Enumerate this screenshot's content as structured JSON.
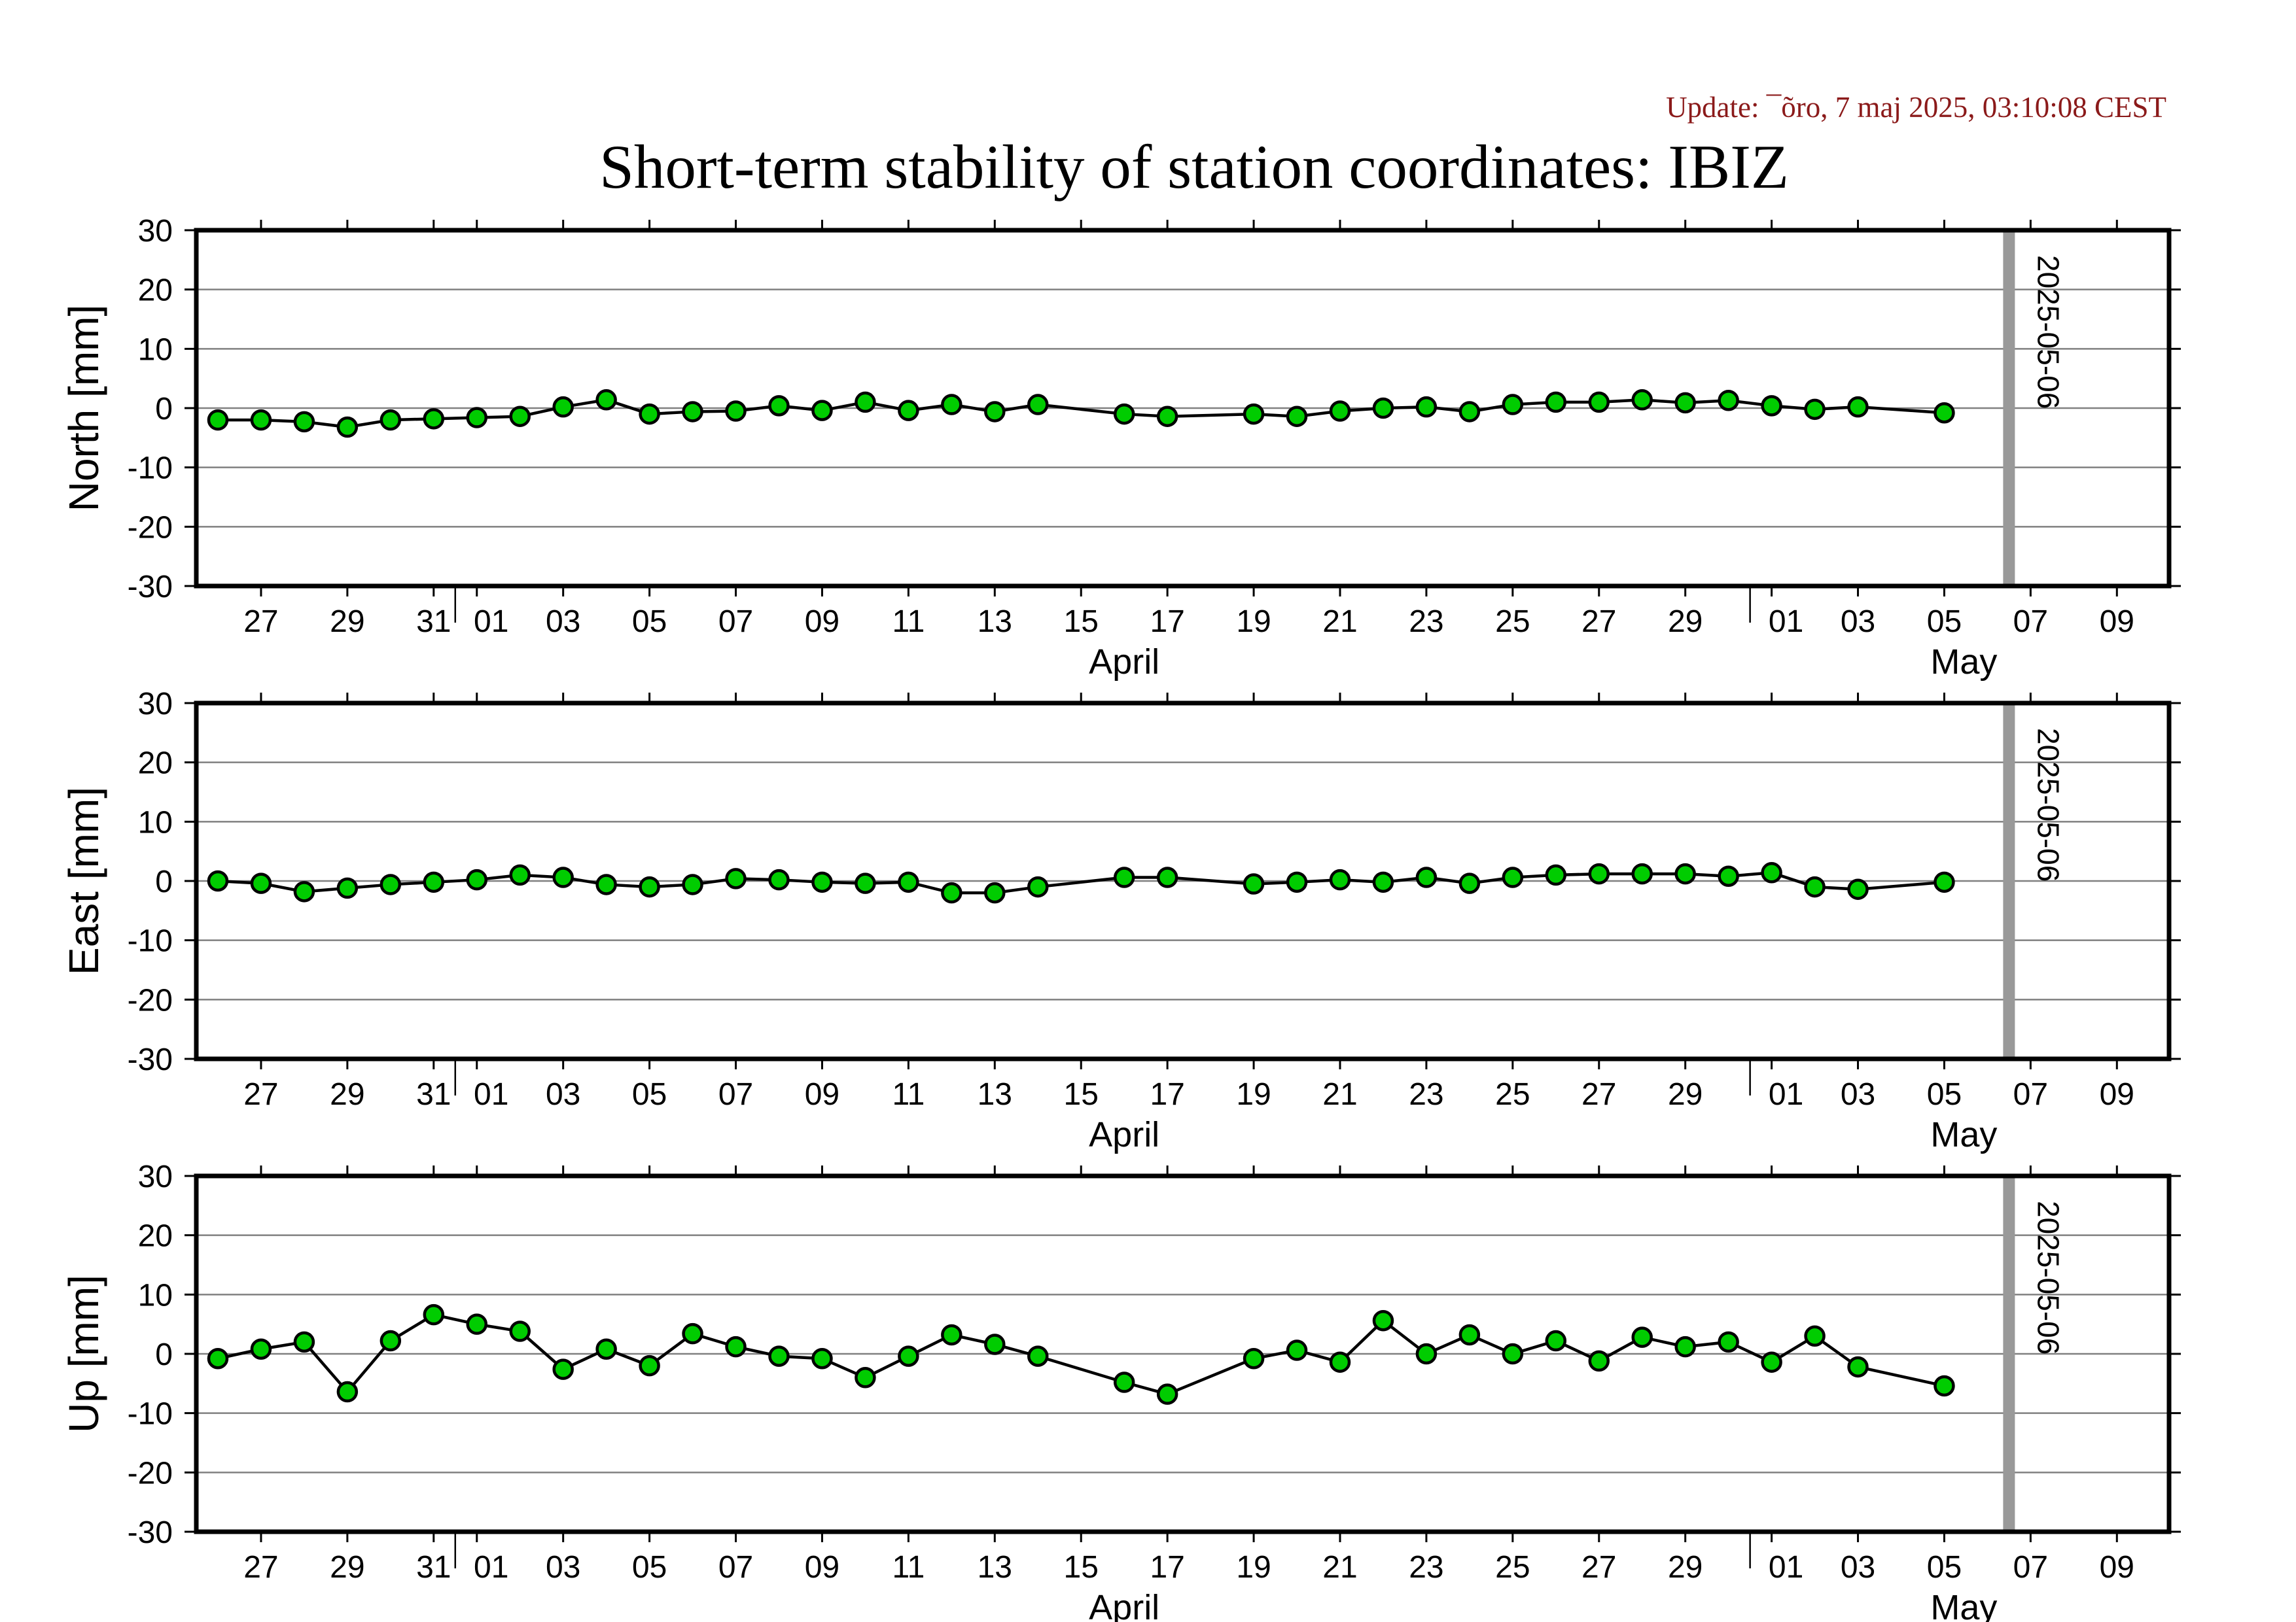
{
  "update": "Update: ¯õro, 7 maj 2025, 03:10:08 CEST",
  "title": "Short-term stability of station coordinates: IBIZ",
  "marker_label": "2025-05-06",
  "colors": {
    "point_fill": "#00cc00",
    "marker": "#999999",
    "grid": "#808080",
    "update_text": "#8b1a1a"
  },
  "chart_data": [
    {
      "type": "line",
      "ylabel": "North [mm]",
      "ylim": [
        -30,
        30
      ],
      "yticks": [
        30,
        20,
        10,
        0,
        -10,
        -20,
        -30
      ],
      "x_range": [
        "2025-03-25T12:00",
        "2025-05-10T05:00"
      ],
      "x_tick_labels": [
        "27",
        "29",
        "31",
        "01",
        "03",
        "05",
        "07",
        "09",
        "11",
        "13",
        "15",
        "17",
        "19",
        "21",
        "23",
        "25",
        "27",
        "29",
        "01",
        "03",
        "05",
        "07",
        "09"
      ],
      "month_labels": [
        "April",
        "May"
      ],
      "marker_date": "2025-05-06",
      "grid": true,
      "series": [
        {
          "x": [
            "2025-03-26",
            "2025-03-27",
            "2025-03-28",
            "2025-03-29",
            "2025-03-30",
            "2025-03-31",
            "2025-04-01",
            "2025-04-02",
            "2025-04-03",
            "2025-04-04",
            "2025-04-05",
            "2025-04-06",
            "2025-04-07",
            "2025-04-08",
            "2025-04-09",
            "2025-04-10",
            "2025-04-11",
            "2025-04-12",
            "2025-04-13",
            "2025-04-14",
            "2025-04-16",
            "2025-04-17",
            "2025-04-19",
            "2025-04-20",
            "2025-04-21",
            "2025-04-22",
            "2025-04-23",
            "2025-04-24",
            "2025-04-25",
            "2025-04-26",
            "2025-04-27",
            "2025-04-28",
            "2025-04-29",
            "2025-04-30",
            "2025-05-01",
            "2025-05-02",
            "2025-05-03",
            "2025-05-05"
          ],
          "y": [
            -2.0,
            -2.0,
            -2.3,
            -3.2,
            -2.0,
            -1.8,
            -1.6,
            -1.4,
            0.2,
            1.4,
            -1.0,
            -0.6,
            -0.5,
            0.4,
            -0.4,
            1.0,
            -0.4,
            0.6,
            -0.6,
            0.6,
            -1.0,
            -1.4,
            -1.0,
            -1.4,
            -0.5,
            0.0,
            0.2,
            -0.6,
            0.6,
            1.0,
            1.0,
            1.4,
            0.9,
            1.3,
            0.4,
            -0.2,
            0.2,
            -0.8
          ]
        }
      ]
    },
    {
      "type": "line",
      "ylabel": "East [mm]",
      "ylim": [
        -30,
        30
      ],
      "yticks": [
        30,
        20,
        10,
        0,
        -10,
        -20,
        -30
      ],
      "x_range": [
        "2025-03-25T12:00",
        "2025-05-10T05:00"
      ],
      "x_tick_labels": [
        "27",
        "29",
        "31",
        "01",
        "03",
        "05",
        "07",
        "09",
        "11",
        "13",
        "15",
        "17",
        "19",
        "21",
        "23",
        "25",
        "27",
        "29",
        "01",
        "03",
        "05",
        "07",
        "09"
      ],
      "month_labels": [
        "April",
        "May"
      ],
      "marker_date": "2025-05-06",
      "grid": true,
      "series": [
        {
          "x": [
            "2025-03-26",
            "2025-03-27",
            "2025-03-28",
            "2025-03-29",
            "2025-03-30",
            "2025-03-31",
            "2025-04-01",
            "2025-04-02",
            "2025-04-03",
            "2025-04-04",
            "2025-04-05",
            "2025-04-06",
            "2025-04-07",
            "2025-04-08",
            "2025-04-09",
            "2025-04-10",
            "2025-04-11",
            "2025-04-12",
            "2025-04-13",
            "2025-04-14",
            "2025-04-16",
            "2025-04-17",
            "2025-04-19",
            "2025-04-20",
            "2025-04-21",
            "2025-04-22",
            "2025-04-23",
            "2025-04-24",
            "2025-04-25",
            "2025-04-26",
            "2025-04-27",
            "2025-04-28",
            "2025-04-29",
            "2025-04-30",
            "2025-05-01",
            "2025-05-02",
            "2025-05-03",
            "2025-05-05"
          ],
          "y": [
            0.0,
            -0.4,
            -1.8,
            -1.2,
            -0.6,
            -0.2,
            0.2,
            1.0,
            0.6,
            -0.6,
            -1.0,
            -0.6,
            0.4,
            0.2,
            -0.2,
            -0.4,
            -0.2,
            -2.0,
            -2.0,
            -1.0,
            0.6,
            0.6,
            -0.5,
            -0.2,
            0.2,
            -0.2,
            0.6,
            -0.4,
            0.6,
            1.0,
            1.2,
            1.2,
            1.2,
            0.8,
            1.4,
            -1.0,
            -1.4,
            -0.2
          ]
        }
      ]
    },
    {
      "type": "line",
      "ylabel": "Up [mm]",
      "ylim": [
        -30,
        30
      ],
      "yticks": [
        30,
        20,
        10,
        0,
        -10,
        -20,
        -30
      ],
      "x_range": [
        "2025-03-25T12:00",
        "2025-05-10T05:00"
      ],
      "x_tick_labels": [
        "27",
        "29",
        "31",
        "01",
        "03",
        "05",
        "07",
        "09",
        "11",
        "13",
        "15",
        "17",
        "19",
        "21",
        "23",
        "25",
        "27",
        "29",
        "01",
        "03",
        "05",
        "07",
        "09"
      ],
      "month_labels": [
        "April",
        "May"
      ],
      "marker_date": "2025-05-06",
      "grid": true,
      "series": [
        {
          "x": [
            "2025-03-26",
            "2025-03-27",
            "2025-03-28",
            "2025-03-29",
            "2025-03-30",
            "2025-03-31",
            "2025-04-01",
            "2025-04-02",
            "2025-04-03",
            "2025-04-04",
            "2025-04-05",
            "2025-04-06",
            "2025-04-07",
            "2025-04-08",
            "2025-04-09",
            "2025-04-10",
            "2025-04-11",
            "2025-04-12",
            "2025-04-13",
            "2025-04-14",
            "2025-04-16",
            "2025-04-17",
            "2025-04-19",
            "2025-04-20",
            "2025-04-21",
            "2025-04-22",
            "2025-04-23",
            "2025-04-24",
            "2025-04-25",
            "2025-04-26",
            "2025-04-27",
            "2025-04-28",
            "2025-04-29",
            "2025-04-30",
            "2025-05-01",
            "2025-05-02",
            "2025-05-03",
            "2025-05-05"
          ],
          "y": [
            -0.8,
            0.8,
            2.0,
            -6.4,
            2.2,
            6.6,
            5.0,
            3.8,
            -2.6,
            0.8,
            -2.0,
            3.4,
            1.2,
            -0.4,
            -0.8,
            -4.0,
            -0.4,
            3.2,
            1.6,
            -0.4,
            -4.8,
            -6.8,
            -0.8,
            0.6,
            -1.4,
            5.6,
            0.0,
            3.2,
            0.0,
            2.2,
            -1.2,
            2.8,
            1.2,
            2.0,
            -1.4,
            3.0,
            -2.2,
            -5.4
          ]
        }
      ]
    }
  ]
}
